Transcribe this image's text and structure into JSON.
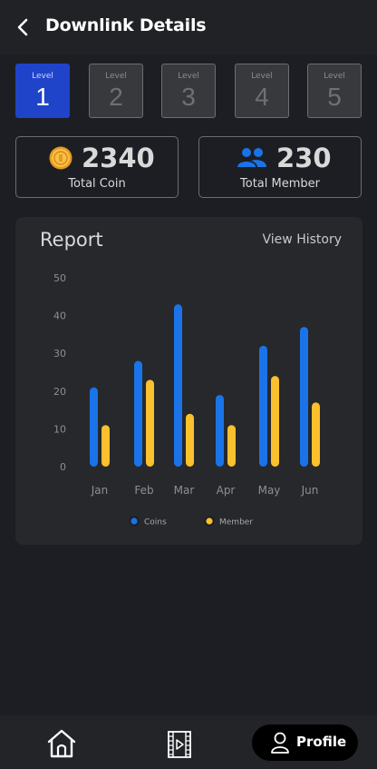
{
  "header": {
    "title": "Downlink Details",
    "back_icon": "chevron-left-icon"
  },
  "levels": [
    {
      "label": "Level",
      "number": "1",
      "active": true
    },
    {
      "label": "Level",
      "number": "2",
      "active": false
    },
    {
      "label": "Level",
      "number": "3",
      "active": false
    },
    {
      "label": "Level",
      "number": "4",
      "active": false
    },
    {
      "label": "Level",
      "number": "5",
      "active": false
    }
  ],
  "stats": {
    "coin": {
      "value": "2340",
      "label": "Total Coin",
      "icon": "coin-icon"
    },
    "member": {
      "value": "230",
      "label": "Total Member",
      "icon": "users-icon"
    }
  },
  "report": {
    "title": "Report",
    "view_history": "View History"
  },
  "colors": {
    "coins": "#1a73e8",
    "member": "#fbc02d",
    "active_level": "#1f44c9"
  },
  "chart_data": {
    "type": "bar",
    "categories": [
      "Jan",
      "Feb",
      "Mar",
      "Apr",
      "May",
      "Jun"
    ],
    "series": [
      {
        "name": "Coins",
        "values": [
          21,
          28,
          43,
          19,
          32,
          37
        ]
      },
      {
        "name": "Member",
        "values": [
          11,
          23,
          14,
          11,
          24,
          17
        ]
      }
    ],
    "ylim": [
      0,
      50
    ],
    "yticks": [
      "0",
      "10",
      "20",
      "30",
      "40",
      "50"
    ],
    "legend": "bottom",
    "grid": false
  },
  "bottom_nav": {
    "home_icon": "home-icon",
    "video_icon": "film-icon",
    "profile_label": "Profile",
    "profile_icon": "user-icon"
  }
}
